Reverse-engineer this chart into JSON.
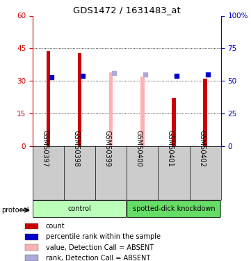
{
  "title": "GDS1472 / 1631483_at",
  "categories": [
    "GSM50397",
    "GSM50398",
    "GSM50399",
    "GSM50400",
    "GSM50401",
    "GSM50402"
  ],
  "bar_values": [
    44,
    43,
    34,
    32,
    22,
    31
  ],
  "bar_colors": [
    "#cc0000",
    "#cc0000",
    "#ffb0b0",
    "#ffb0b0",
    "#cc0000",
    "#cc0000"
  ],
  "rank_values": [
    53,
    54,
    56,
    55,
    54,
    55
  ],
  "rank_colors": [
    "#0000cc",
    "#0000cc",
    "#aaaadd",
    "#aaaadd",
    "#0000cc",
    "#0000cc"
  ],
  "absent_flags": [
    false,
    false,
    true,
    true,
    false,
    false
  ],
  "left_yticks": [
    0,
    15,
    30,
    45,
    60
  ],
  "right_ytick_vals": [
    0,
    25,
    50,
    75,
    100
  ],
  "left_ylabel_color": "#cc0000",
  "right_ylabel_color": "#0000bb",
  "groups": [
    {
      "label": "control",
      "start": 0,
      "end": 3,
      "color": "#bbffbb"
    },
    {
      "label": "spotted-dick knockdown",
      "start": 3,
      "end": 6,
      "color": "#66dd66"
    }
  ],
  "protocol_label": "protocol",
  "legend_items": [
    {
      "label": "count",
      "color": "#cc0000"
    },
    {
      "label": "percentile rank within the sample",
      "color": "#0000cc"
    },
    {
      "label": "value, Detection Call = ABSENT",
      "color": "#ffb0b0"
    },
    {
      "label": "rank, Detection Call = ABSENT",
      "color": "#aaaadd"
    }
  ],
  "bar_width": 0.12,
  "ylim_left": [
    0,
    60
  ],
  "ylim_right": [
    0,
    100
  ],
  "bg_color": "#ffffff",
  "tick_label_bg": "#cccccc",
  "dotted_grid_values": [
    15,
    30,
    45
  ]
}
